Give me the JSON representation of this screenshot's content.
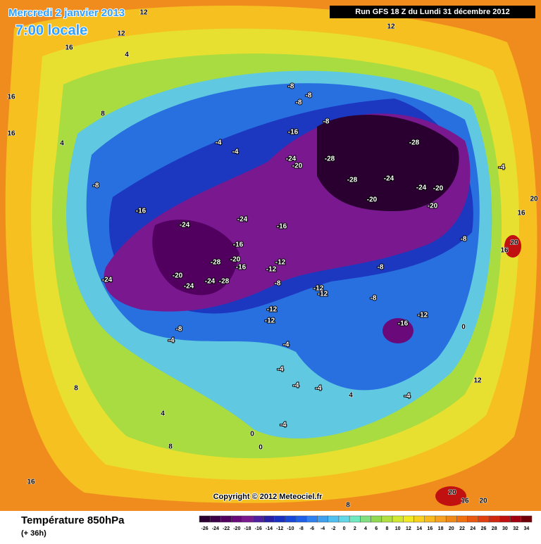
{
  "header": {
    "date": "Mercredi 2 janvier 2013",
    "time": "7:00 locale",
    "run": "Run GFS 18 Z du Lundi 31 décembre 2012"
  },
  "map": {
    "copyright": "Copyright © 2012 Meteociel.fr",
    "labels": [
      -28,
      -28,
      -28,
      -28,
      -28,
      -24,
      -24,
      -24,
      -24,
      -24,
      -24,
      -24,
      -24,
      -20,
      -20,
      -20,
      -20,
      -20,
      -20,
      -16,
      -16,
      -16,
      -16,
      -16,
      -16,
      -12,
      -12,
      -12,
      -12,
      -12,
      -12,
      -12,
      -8,
      -8,
      -8,
      -8,
      -8,
      -8,
      -8,
      -8,
      -8,
      -8,
      -4,
      -4,
      -4,
      -4,
      -4,
      -4,
      -4,
      -4,
      -4,
      -4,
      0,
      0,
      0,
      4,
      4,
      4,
      4,
      8,
      8,
      8,
      8,
      12,
      12,
      12,
      12,
      16,
      16,
      16,
      16,
      16,
      16,
      16,
      20,
      20,
      20,
      20
    ]
  },
  "footer": {
    "title": "Température 850hPa",
    "lead": "(+ 36h)"
  },
  "legend": {
    "ticks": [
      -26,
      -24,
      -22,
      -20,
      -18,
      -16,
      -14,
      -12,
      -10,
      -8,
      -6,
      -4,
      -2,
      0,
      2,
      4,
      6,
      8,
      10,
      12,
      14,
      16,
      18,
      20,
      22,
      24,
      26,
      28,
      30,
      32,
      34
    ],
    "colors": [
      "#2a0030",
      "#3c0048",
      "#520060",
      "#6a0a7a",
      "#7a1890",
      "#5020a0",
      "#2a20a8",
      "#1a30c0",
      "#1848d8",
      "#2060e8",
      "#3080f0",
      "#40a0f0",
      "#50c0f0",
      "#60d8e8",
      "#70e8c0",
      "#80e080",
      "#90d850",
      "#b0e040",
      "#d0e830",
      "#f0e820",
      "#f8d020",
      "#f8b820",
      "#f8a020",
      "#f08818",
      "#f07010",
      "#e85810",
      "#e04010",
      "#d02810",
      "#c01010",
      "#a00010",
      "#700008"
    ]
  }
}
